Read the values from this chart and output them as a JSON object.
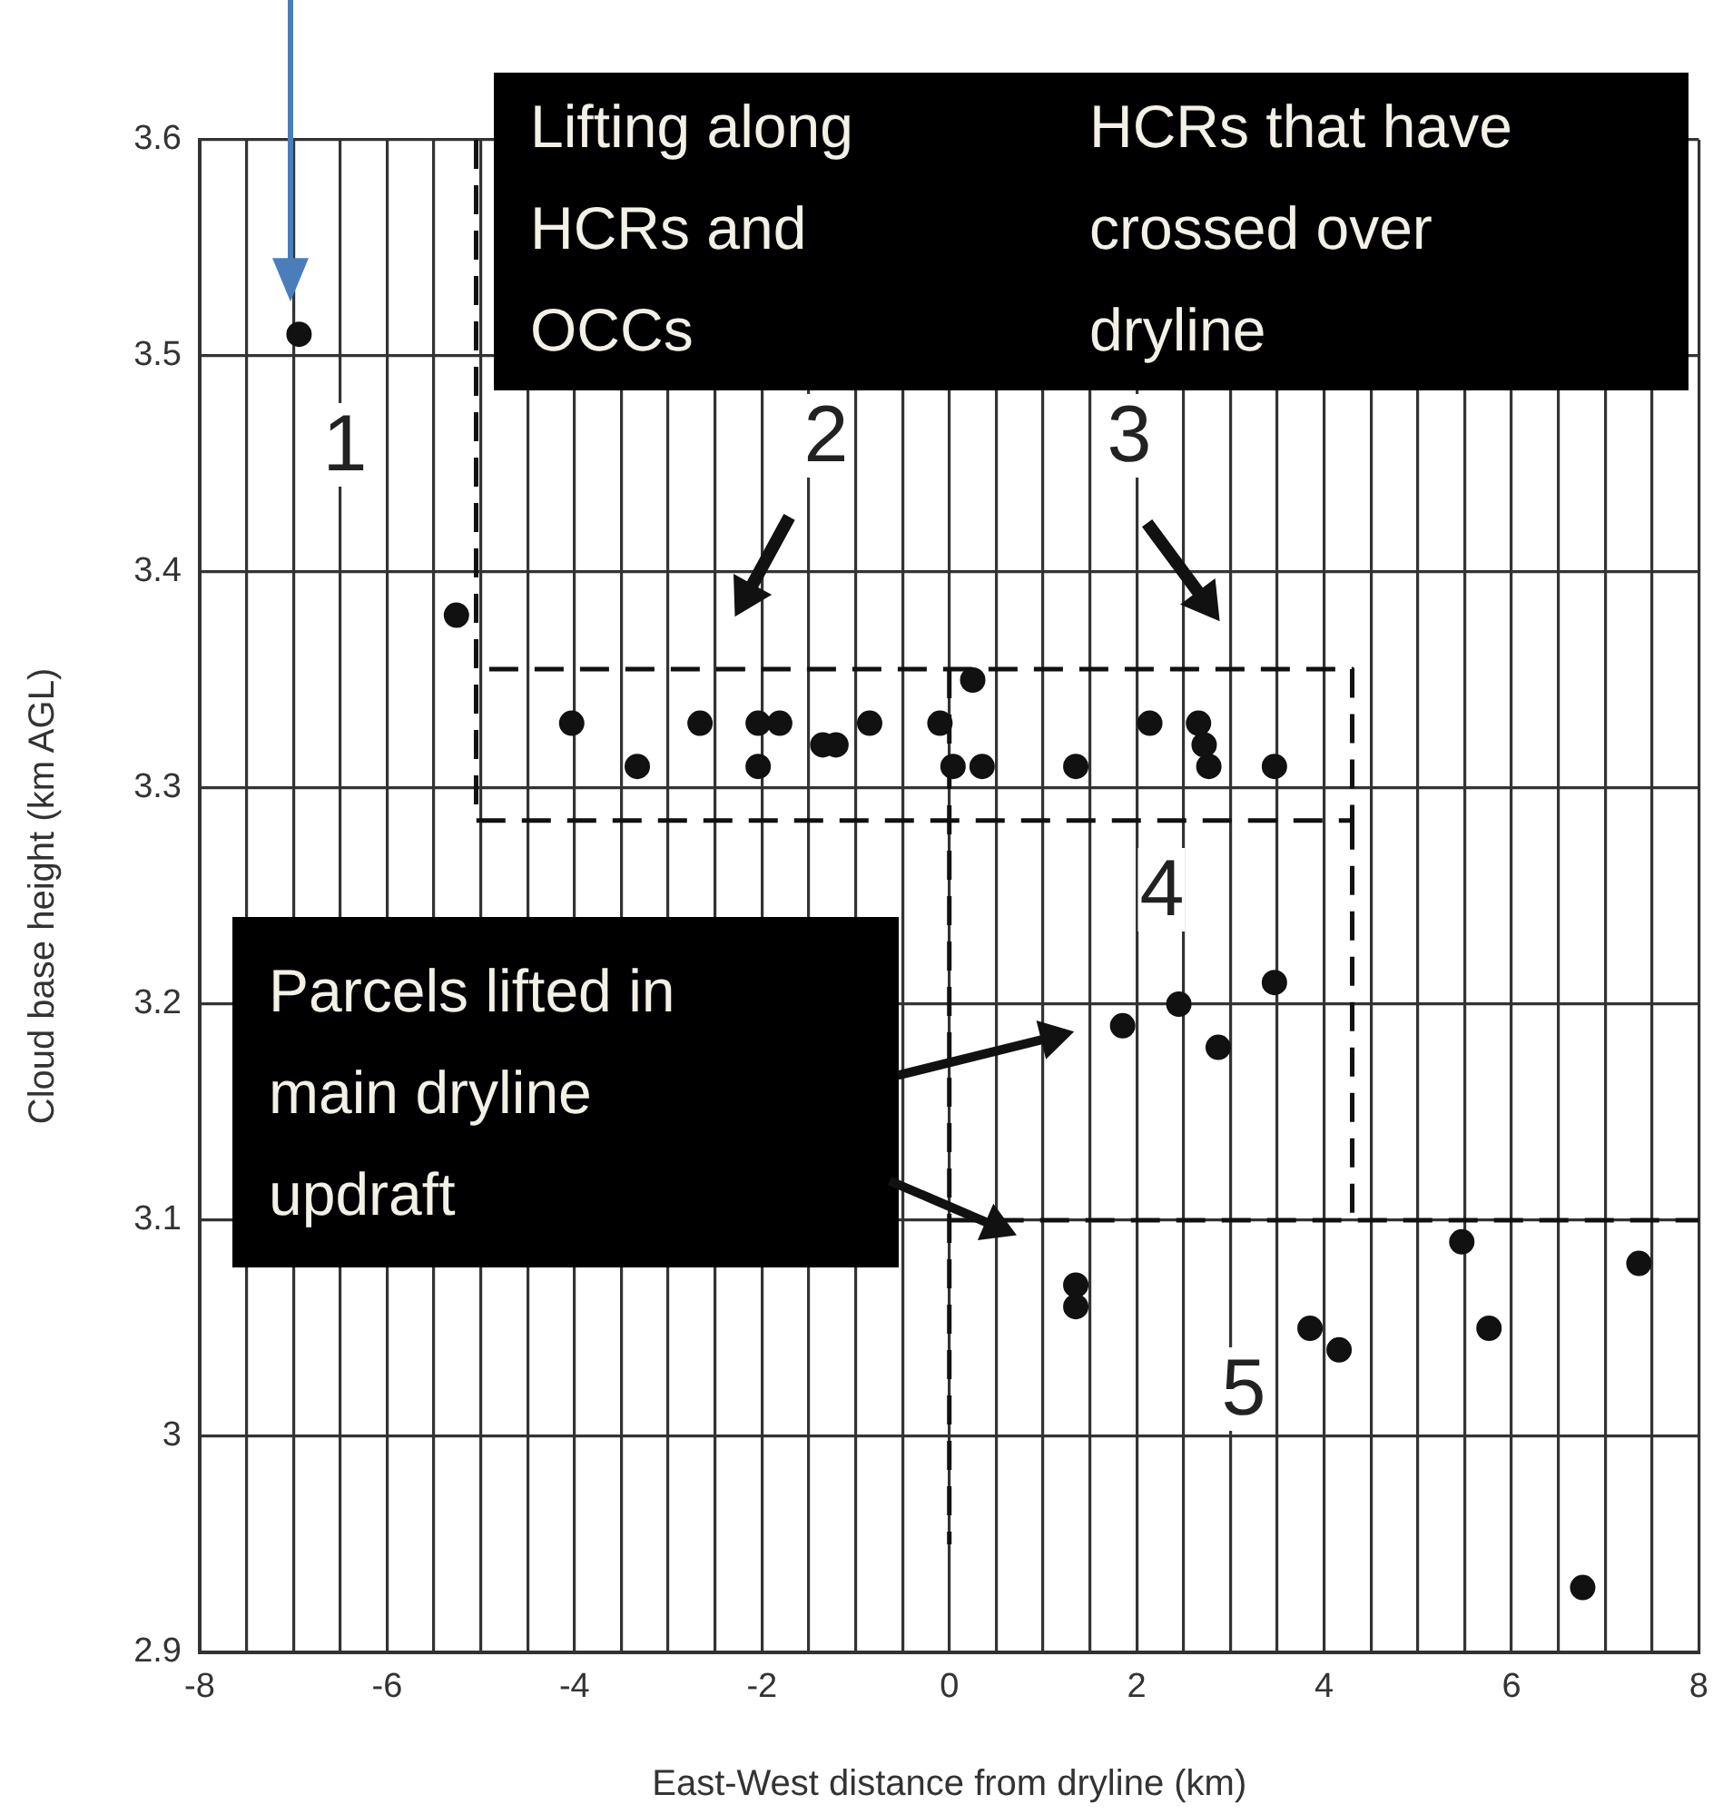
{
  "chart_data": {
    "type": "scatter",
    "xlabel": "East-West distance from dryline (km)",
    "ylabel": "Cloud base height (km AGL)",
    "xlim": [
      -8,
      8
    ],
    "ylim": [
      2.9,
      3.6
    ],
    "xticks": [
      -8,
      {
        "value": -7.5,
        "label": null
      },
      {
        "value": -7,
        "label": null
      },
      {
        "value": -6.5,
        "label": null
      },
      -6,
      {
        "value": -5.5,
        "label": null
      },
      {
        "value": -5,
        "label": null
      },
      {
        "value": -4.5,
        "label": null
      },
      -4,
      {
        "value": -3.5,
        "label": null
      },
      {
        "value": -3,
        "label": null
      },
      {
        "value": -2.5,
        "label": null
      },
      -2,
      {
        "value": -1.5,
        "label": null
      },
      {
        "value": -1,
        "label": null
      },
      {
        "value": -0.5,
        "label": null
      },
      0,
      {
        "value": 0.5,
        "label": null
      },
      {
        "value": 1,
        "label": null
      },
      {
        "value": 1.5,
        "label": null
      },
      2,
      {
        "value": 2.5,
        "label": null
      },
      {
        "value": 3,
        "label": null
      },
      {
        "value": 3.5,
        "label": null
      },
      4,
      {
        "value": 4.5,
        "label": null
      },
      {
        "value": 5,
        "label": null
      },
      {
        "value": 5.5,
        "label": null
      },
      6,
      {
        "value": 6.5,
        "label": null
      },
      {
        "value": 7,
        "label": null
      },
      {
        "value": 7.5,
        "label": null
      },
      8
    ],
    "yticks": [
      {
        "value": 2.9,
        "label": "2.9"
      },
      {
        "value": 3.0,
        "label": "3"
      },
      {
        "value": 3.1,
        "label": "3.1"
      },
      {
        "value": 3.2,
        "label": "3.2"
      },
      {
        "value": 3.3,
        "label": "3.3"
      },
      {
        "value": 3.4,
        "label": "3.4"
      },
      {
        "value": 3.5,
        "label": "3.5"
      },
      {
        "value": 3.6,
        "label": "3.6"
      }
    ],
    "grid": true,
    "legend": false,
    "series": [
      {
        "type": "scatter",
        "color": "#111111",
        "marker": "circle",
        "x": [
          -6.94,
          -5.26,
          -4.03,
          -3.33,
          -2.66,
          -2.04,
          -1.81,
          -2.04,
          -1.35,
          -1.21,
          -0.85,
          -0.1,
          0.25,
          0.04,
          0.35,
          1.35,
          2.14,
          2.66,
          2.72,
          2.77,
          3.47,
          1.85,
          2.45,
          2.87,
          3.47,
          1.35,
          1.35,
          3.85,
          4.16,
          5.47,
          5.76,
          6.76,
          7.36
        ],
        "values": [
          3.51,
          3.38,
          3.33,
          3.31,
          3.33,
          3.33,
          3.33,
          3.31,
          3.32,
          3.32,
          3.33,
          3.33,
          3.35,
          3.31,
          3.31,
          3.31,
          3.33,
          3.33,
          3.32,
          3.31,
          3.31,
          3.19,
          3.2,
          3.18,
          3.21,
          3.07,
          3.06,
          3.05,
          3.04,
          3.09,
          3.05,
          2.93,
          3.08
        ]
      },
      {
        "type": "line",
        "color": "#111111",
        "marker": "none",
        "line_style": "dashed",
        "x": [
          -5.05,
          -5.05,
          4.3,
          4.3,
          -5.05
        ],
        "values": [
          3.6,
          3.285,
          3.285,
          3.355,
          3.355
        ]
      },
      {
        "type": "line",
        "color": "#111111",
        "marker": "none",
        "line_style": "dashed",
        "x": [
          0,
          0
        ],
        "values": [
          3.355,
          2.95
        ]
      },
      {
        "type": "line",
        "color": "#111111",
        "marker": "none",
        "line_style": "dashed",
        "x": [
          4.3,
          4.3
        ],
        "values": [
          3.285,
          3.1
        ]
      },
      {
        "type": "line",
        "color": "#111111",
        "marker": "none",
        "line_style": "dashed",
        "x": [
          0,
          8
        ],
        "values": [
          3.1,
          3.1
        ]
      }
    ],
    "annotations": [
      "Lifting along\nHCRs and\nOCCs",
      "HCRs that have\ncrossed over\ndryline",
      "Parcels lifted in\nmain dryline\nupdraft",
      "1",
      "2",
      "3",
      "4",
      "5"
    ]
  }
}
